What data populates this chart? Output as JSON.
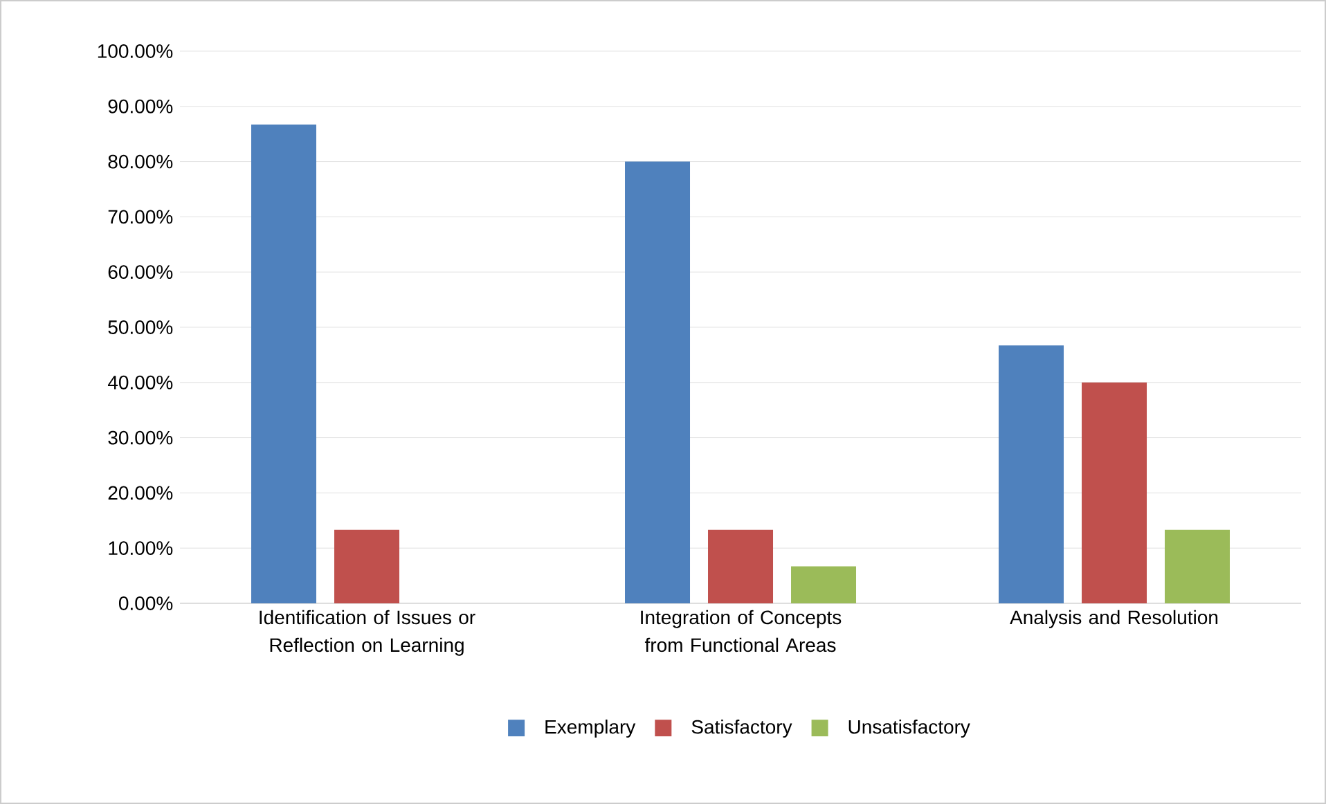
{
  "chart_data": {
    "type": "bar",
    "categories": [
      "Identification of Issues or Reflection on Learning",
      "Integration of Concepts from Functional Areas",
      "Analysis and Resolution"
    ],
    "series": [
      {
        "name": "Exemplary",
        "color": "#4f81bd",
        "values": [
          86.7,
          80.0,
          46.7
        ]
      },
      {
        "name": "Satisfactory",
        "color": "#c0504d",
        "values": [
          13.3,
          13.3,
          40.0
        ]
      },
      {
        "name": "Unsatisfactory",
        "color": "#9bbb59",
        "values": [
          0,
          6.7,
          13.3
        ]
      }
    ],
    "ylim": [
      0,
      100
    ],
    "yticks": [
      {
        "value": 0,
        "label": "0.00%"
      },
      {
        "value": 10,
        "label": "10.00%"
      },
      {
        "value": 20,
        "label": "20.00%"
      },
      {
        "value": 30,
        "label": "30.00%"
      },
      {
        "value": 40,
        "label": "40.00%"
      },
      {
        "value": 50,
        "label": "50.00%"
      },
      {
        "value": 60,
        "label": "60.00%"
      },
      {
        "value": 70,
        "label": "70.00%"
      },
      {
        "value": 80,
        "label": "80.00%"
      },
      {
        "value": 90,
        "label": "90.00%"
      },
      {
        "value": 100,
        "label": "100.00%"
      }
    ],
    "grid": "y",
    "legend": "bottom"
  }
}
